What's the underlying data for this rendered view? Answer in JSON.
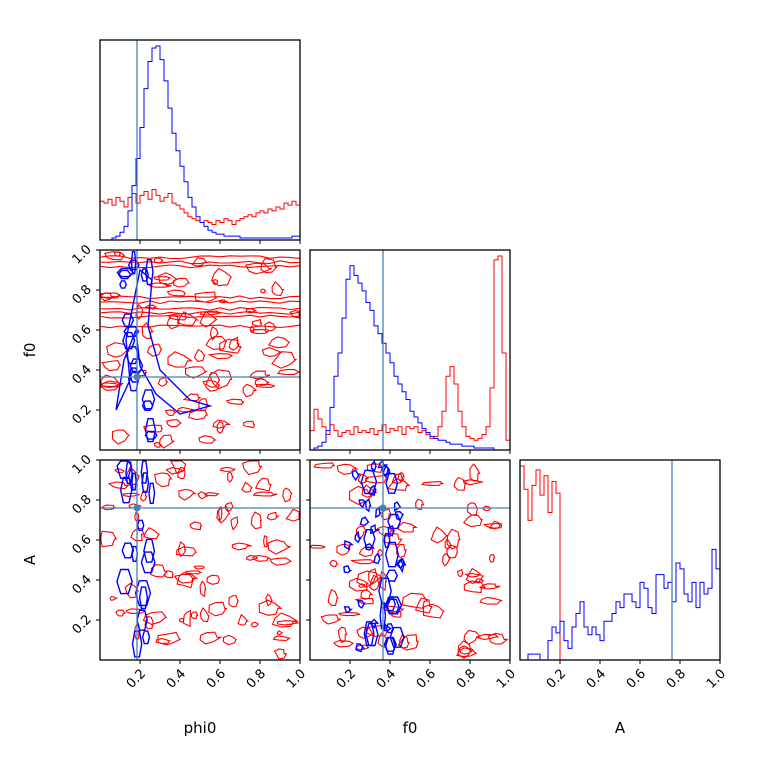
{
  "chart_data": {
    "type": "corner",
    "title": "",
    "parameters": [
      "phi0",
      "f0",
      "A"
    ],
    "truths": {
      "phi0": 0.185,
      "f0": 0.365,
      "A": 0.76
    },
    "range": [
      0,
      1
    ],
    "ticks": [
      0.2,
      0.4,
      0.6,
      0.8,
      1.0
    ],
    "tick_labels": [
      "0.2",
      "0.4",
      "0.6",
      "0.8",
      "1.0"
    ],
    "colors": {
      "series_a": "#0000ff",
      "series_b": "#ff0000",
      "truth": "#4682b4"
    },
    "histograms": {
      "phi0": {
        "blue": [
          0,
          0,
          0,
          0.01,
          0.02,
          0.04,
          0.07,
          0.15,
          0.28,
          0.42,
          0.58,
          0.78,
          0.92,
          0.99,
          1.0,
          0.93,
          0.82,
          0.68,
          0.55,
          0.46,
          0.38,
          0.3,
          0.22,
          0.17,
          0.12,
          0.09,
          0.07,
          0.05,
          0.04,
          0.03,
          0.03,
          0.02,
          0.02,
          0.02,
          0.02,
          0.01,
          0.01,
          0.01,
          0.01,
          0.01,
          0.01,
          0.01,
          0.01,
          0.01,
          0.01,
          0.01,
          0.01,
          0.01,
          0.02,
          0.02
        ],
        "red": [
          0.2,
          0.19,
          0.21,
          0.18,
          0.22,
          0.2,
          0.17,
          0.22,
          0.24,
          0.19,
          0.23,
          0.25,
          0.21,
          0.26,
          0.23,
          0.2,
          0.22,
          0.24,
          0.19,
          0.18,
          0.16,
          0.14,
          0.12,
          0.11,
          0.1,
          0.09,
          0.1,
          0.09,
          0.08,
          0.1,
          0.09,
          0.11,
          0.1,
          0.08,
          0.1,
          0.11,
          0.12,
          0.13,
          0.12,
          0.14,
          0.15,
          0.14,
          0.16,
          0.15,
          0.17,
          0.16,
          0.19,
          0.18,
          0.2,
          0.18
        ]
      },
      "f0": {
        "blue": [
          0,
          0.01,
          0.02,
          0.04,
          0.1,
          0.22,
          0.38,
          0.5,
          0.68,
          0.88,
          0.95,
          0.9,
          0.86,
          0.82,
          0.76,
          0.72,
          0.64,
          0.6,
          0.55,
          0.5,
          0.45,
          0.38,
          0.34,
          0.3,
          0.26,
          0.2,
          0.17,
          0.14,
          0.11,
          0.09,
          0.07,
          0.06,
          0.05,
          0.05,
          0.04,
          0.03,
          0.03,
          0.03,
          0.02,
          0.02,
          0.02,
          0.01,
          0.01,
          0.01,
          0.01,
          0.01,
          0,
          0,
          0,
          0
        ],
        "red": [
          0.1,
          0.21,
          0.16,
          0.12,
          0.08,
          0.13,
          0.1,
          0.07,
          0.09,
          0.1,
          0.08,
          0.12,
          0.09,
          0.1,
          0.09,
          0.11,
          0.08,
          0.1,
          0.13,
          0.09,
          0.11,
          0.1,
          0.12,
          0.08,
          0.12,
          0.11,
          0.12,
          0.09,
          0.1,
          0.08,
          0.06,
          0.07,
          0.12,
          0.2,
          0.38,
          0.43,
          0.34,
          0.2,
          0.12,
          0.07,
          0.06,
          0.05,
          0.06,
          0.08,
          0.12,
          0.32,
          0.98,
          1.0,
          0.5,
          0.05
        ]
      },
      "A": {
        "blue": [
          0,
          0,
          0.03,
          0.03,
          0.03,
          0,
          0,
          0.1,
          0.17,
          0.14,
          0.2,
          0.1,
          0.06,
          0.17,
          0.24,
          0.3,
          0.17,
          0.13,
          0.17,
          0.13,
          0.1,
          0.2,
          0.2,
          0.24,
          0.3,
          0.27,
          0.34,
          0.34,
          0.3,
          0.27,
          0.4,
          0.37,
          0.27,
          0.24,
          0.44,
          0.44,
          0.37,
          0.4,
          0.3,
          0.5,
          0.47,
          0.34,
          0.3,
          0.4,
          0.27,
          0.4,
          0.34,
          0.37,
          0.57,
          0.47
        ],
        "red": [
          1.0,
          0.88,
          0.72,
          0.9,
          0.98,
          0.85,
          0.95,
          0.76,
          0.92,
          0.86,
          0,
          0,
          0,
          0,
          0,
          0,
          0,
          0,
          0,
          0,
          0,
          0,
          0,
          0,
          0,
          0,
          0,
          0,
          0,
          0,
          0,
          0,
          0,
          0,
          0,
          0,
          0,
          0,
          0,
          0,
          0,
          0,
          0,
          0,
          0,
          0,
          0,
          0,
          0,
          0
        ]
      }
    }
  }
}
